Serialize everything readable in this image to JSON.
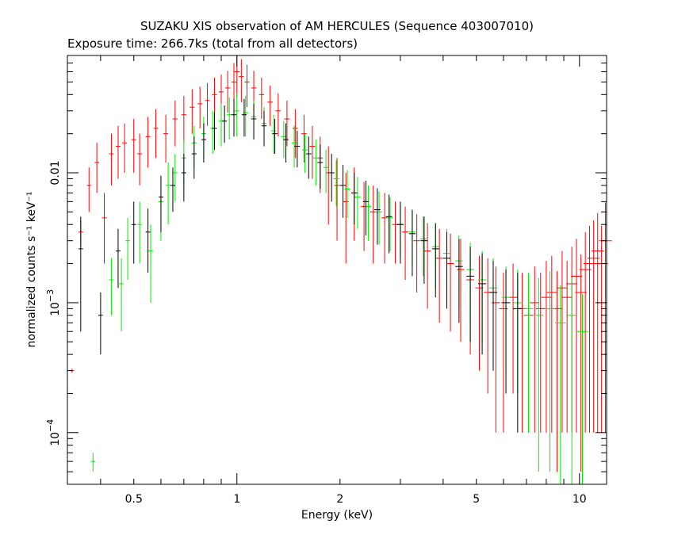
{
  "chart_data": {
    "type": "scatter",
    "title": "SUZAKU XIS observation of AM HERCULES (Sequence 403007010)",
    "subtitle": "Exposure time: 266.7ks (total from all detectors)",
    "xlabel": "Energy (keV)",
    "ylabel": "normalized counts s⁻¹ keV⁻¹",
    "xscale": "log",
    "yscale": "log",
    "xlim": [
      0.32,
      12
    ],
    "ylim": [
      4e-05,
      0.08
    ],
    "xticks": [
      {
        "value": 0.5,
        "label": "0.5"
      },
      {
        "value": 1,
        "label": "1"
      },
      {
        "value": 2,
        "label": "2"
      },
      {
        "value": 5,
        "label": "5"
      },
      {
        "value": 10,
        "label": "10"
      }
    ],
    "yticks": [
      {
        "value": 0.0001,
        "base": "10",
        "exp": "−4"
      },
      {
        "value": 0.001,
        "base": "10",
        "exp": "−3"
      },
      {
        "value": 0.01,
        "label": "0.01"
      }
    ],
    "grid": false,
    "series": [
      {
        "color": "#ff0000",
        "points": [
          [
            0.33,
            0.0003,
            1e-05
          ],
          [
            0.35,
            0.0035,
            0.0008
          ],
          [
            0.37,
            0.008,
            0.003
          ],
          [
            0.39,
            0.012,
            0.005
          ],
          [
            0.41,
            0.0045,
            0.0025
          ],
          [
            0.43,
            0.014,
            0.006
          ],
          [
            0.45,
            0.016,
            0.007
          ],
          [
            0.47,
            0.017,
            0.007
          ],
          [
            0.5,
            0.018,
            0.008
          ],
          [
            0.52,
            0.014,
            0.006
          ],
          [
            0.55,
            0.019,
            0.008
          ],
          [
            0.58,
            0.022,
            0.009
          ],
          [
            0.62,
            0.02,
            0.008
          ],
          [
            0.66,
            0.026,
            0.01
          ],
          [
            0.7,
            0.028,
            0.011
          ],
          [
            0.74,
            0.032,
            0.012
          ],
          [
            0.78,
            0.034,
            0.012
          ],
          [
            0.82,
            0.036,
            0.013
          ],
          [
            0.86,
            0.04,
            0.014
          ],
          [
            0.9,
            0.042,
            0.015
          ],
          [
            0.94,
            0.045,
            0.016
          ],
          [
            0.98,
            0.05,
            0.02
          ],
          [
            1.0,
            0.06,
            0.022
          ],
          [
            1.03,
            0.055,
            0.02
          ],
          [
            1.07,
            0.05,
            0.018
          ],
          [
            1.12,
            0.045,
            0.016
          ],
          [
            1.18,
            0.04,
            0.014
          ],
          [
            1.25,
            0.035,
            0.012
          ],
          [
            1.32,
            0.03,
            0.011
          ],
          [
            1.4,
            0.026,
            0.01
          ],
          [
            1.48,
            0.022,
            0.009
          ],
          [
            1.57,
            0.02,
            0.008
          ],
          [
            1.66,
            0.016,
            0.007
          ],
          [
            1.75,
            0.013,
            0.006
          ],
          [
            1.85,
            0.01,
            0.006
          ],
          [
            1.96,
            0.008,
            0.005
          ],
          [
            2.08,
            0.006,
            0.004
          ],
          [
            2.2,
            0.007,
            0.004
          ],
          [
            2.35,
            0.0055,
            0.003
          ],
          [
            2.5,
            0.005,
            0.003
          ],
          [
            2.7,
            0.0045,
            0.0025
          ],
          [
            2.9,
            0.004,
            0.002
          ],
          [
            3.1,
            0.0035,
            0.002
          ],
          [
            3.35,
            0.003,
            0.0018
          ],
          [
            3.6,
            0.0025,
            0.0016
          ],
          [
            3.9,
            0.0022,
            0.0015
          ],
          [
            4.2,
            0.002,
            0.0014
          ],
          [
            4.5,
            0.0018,
            0.0013
          ],
          [
            4.8,
            0.0015,
            0.0011
          ],
          [
            5.1,
            0.0013,
            0.001
          ],
          [
            5.4,
            0.0012,
            0.001
          ],
          [
            5.7,
            0.001,
            0.0009
          ],
          [
            6.0,
            0.0009,
            0.0008
          ],
          [
            6.4,
            0.0011,
            0.0009
          ],
          [
            6.8,
            0.0009,
            0.0008
          ],
          [
            7.1,
            0.0008,
            0.0007
          ],
          [
            7.4,
            0.001,
            0.0009
          ],
          [
            7.7,
            0.0009,
            0.0008
          ],
          [
            8.0,
            0.0011,
            0.001
          ],
          [
            8.3,
            0.0012,
            0.0011
          ],
          [
            8.6,
            0.0009,
            0.00085
          ],
          [
            8.9,
            0.0013,
            0.0012
          ],
          [
            9.2,
            0.0011,
            0.001
          ],
          [
            9.5,
            0.0014,
            0.0013
          ],
          [
            9.8,
            0.0016,
            0.0015
          ],
          [
            10.1,
            0.0012,
            0.00115
          ],
          [
            10.4,
            0.0018,
            0.0017
          ],
          [
            10.7,
            0.002,
            0.0019
          ],
          [
            11.0,
            0.0022,
            0.0021
          ],
          [
            11.3,
            0.0025,
            0.0024
          ],
          [
            11.6,
            0.002,
            0.0019
          ],
          [
            11.9,
            0.003,
            0.0029
          ]
        ]
      },
      {
        "color": "#00ee00",
        "points": [
          [
            0.38,
            6e-05,
            1e-05
          ],
          [
            0.43,
            0.0015,
            0.0007
          ],
          [
            0.46,
            0.0014,
            0.0008
          ],
          [
            0.48,
            0.003,
            0.0015
          ],
          [
            0.52,
            0.004,
            0.002
          ],
          [
            0.56,
            0.0025,
            0.0015
          ],
          [
            0.6,
            0.006,
            0.003
          ],
          [
            0.63,
            0.008,
            0.004
          ],
          [
            0.66,
            0.01,
            0.004
          ],
          [
            0.7,
            0.013,
            0.005
          ],
          [
            0.75,
            0.017,
            0.006
          ],
          [
            0.8,
            0.02,
            0.007
          ],
          [
            0.85,
            0.022,
            0.008
          ],
          [
            0.9,
            0.025,
            0.009
          ],
          [
            0.95,
            0.028,
            0.01
          ],
          [
            1.0,
            0.03,
            0.011
          ],
          [
            1.06,
            0.029,
            0.01
          ],
          [
            1.12,
            0.027,
            0.009
          ],
          [
            1.2,
            0.024,
            0.008
          ],
          [
            1.28,
            0.021,
            0.007
          ],
          [
            1.37,
            0.019,
            0.006
          ],
          [
            1.47,
            0.017,
            0.006
          ],
          [
            1.58,
            0.015,
            0.005
          ],
          [
            1.7,
            0.013,
            0.005
          ],
          [
            1.82,
            0.011,
            0.004
          ],
          [
            1.95,
            0.009,
            0.0035
          ],
          [
            2.1,
            0.0075,
            0.003
          ],
          [
            2.25,
            0.0065,
            0.0028
          ],
          [
            2.42,
            0.0055,
            0.0025
          ],
          [
            2.6,
            0.005,
            0.0022
          ],
          [
            2.8,
            0.0045,
            0.002
          ],
          [
            3.0,
            0.004,
            0.0018
          ],
          [
            3.25,
            0.0035,
            0.0016
          ],
          [
            3.5,
            0.0031,
            0.0015
          ],
          [
            3.8,
            0.0027,
            0.0014
          ],
          [
            4.1,
            0.0024,
            0.0013
          ],
          [
            4.45,
            0.0021,
            0.0012
          ],
          [
            4.8,
            0.0018,
            0.0011
          ],
          [
            5.2,
            0.0015,
            0.001
          ],
          [
            5.6,
            0.0013,
            0.0009
          ],
          [
            6.1,
            0.0011,
            0.0008
          ],
          [
            6.6,
            0.001,
            0.0008
          ],
          [
            7.1,
            0.0009,
            0.0008
          ],
          [
            7.6,
            0.0008,
            0.00075
          ],
          [
            8.2,
            0.0009,
            0.00085
          ],
          [
            8.8,
            0.0007,
            0.00066
          ],
          [
            9.5,
            0.0008,
            0.00076
          ],
          [
            10.2,
            0.0006,
            0.00057
          ]
        ]
      },
      {
        "color": "#000000",
        "points": [
          [
            0.35,
            0.0026,
            0.002
          ],
          [
            0.4,
            0.0008,
            0.0004
          ],
          [
            0.45,
            0.0025,
            0.0012
          ],
          [
            0.5,
            0.004,
            0.002
          ],
          [
            0.55,
            0.0035,
            0.0018
          ],
          [
            0.6,
            0.0065,
            0.003
          ],
          [
            0.65,
            0.008,
            0.003
          ],
          [
            0.7,
            0.01,
            0.004
          ],
          [
            0.75,
            0.014,
            0.005
          ],
          [
            0.8,
            0.018,
            0.006
          ],
          [
            0.86,
            0.022,
            0.007
          ],
          [
            0.92,
            0.025,
            0.008
          ],
          [
            0.98,
            0.028,
            0.009
          ],
          [
            1.05,
            0.028,
            0.009
          ],
          [
            1.12,
            0.026,
            0.008
          ],
          [
            1.2,
            0.023,
            0.007
          ],
          [
            1.29,
            0.02,
            0.006
          ],
          [
            1.39,
            0.018,
            0.006
          ],
          [
            1.5,
            0.016,
            0.005
          ],
          [
            1.62,
            0.014,
            0.005
          ],
          [
            1.75,
            0.012,
            0.0045
          ],
          [
            1.89,
            0.01,
            0.004
          ],
          [
            2.04,
            0.008,
            0.0035
          ],
          [
            2.2,
            0.007,
            0.003
          ],
          [
            2.38,
            0.006,
            0.0027
          ],
          [
            2.57,
            0.0052,
            0.0024
          ],
          [
            2.78,
            0.0046,
            0.0022
          ],
          [
            3.0,
            0.004,
            0.002
          ],
          [
            3.25,
            0.0034,
            0.0018
          ],
          [
            3.52,
            0.003,
            0.0016
          ],
          [
            3.8,
            0.0026,
            0.0015
          ],
          [
            4.1,
            0.0022,
            0.0013
          ],
          [
            4.45,
            0.0019,
            0.0012
          ],
          [
            4.8,
            0.0016,
            0.0011
          ],
          [
            5.2,
            0.0014,
            0.001
          ],
          [
            5.6,
            0.0012,
            0.0009
          ],
          [
            6.1,
            0.001,
            0.0008
          ],
          [
            6.6,
            0.0009,
            0.0008
          ]
        ]
      }
    ]
  }
}
